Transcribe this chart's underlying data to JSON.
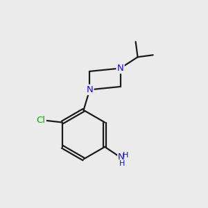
{
  "bg_color": "#ebebeb",
  "bond_color": "#1a1a1a",
  "n_color": "#1010dd",
  "cl_color": "#00aa00",
  "line_width": 1.6,
  "fig_size": [
    3.0,
    3.0
  ],
  "dpi": 100,
  "xlim": [
    0,
    10
  ],
  "ylim": [
    0,
    10
  ]
}
